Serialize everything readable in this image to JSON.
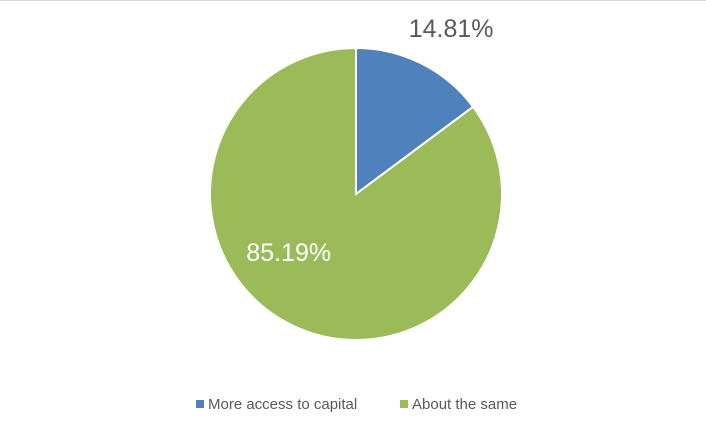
{
  "chart_data": {
    "type": "pie",
    "categories": [
      "More access to capital",
      "About the same"
    ],
    "values": [
      14.81,
      85.19
    ],
    "value_labels": [
      "14.81%",
      "85.19%"
    ],
    "colors": [
      "#4f81bd",
      "#9bbb59"
    ],
    "legend": "bottom"
  }
}
